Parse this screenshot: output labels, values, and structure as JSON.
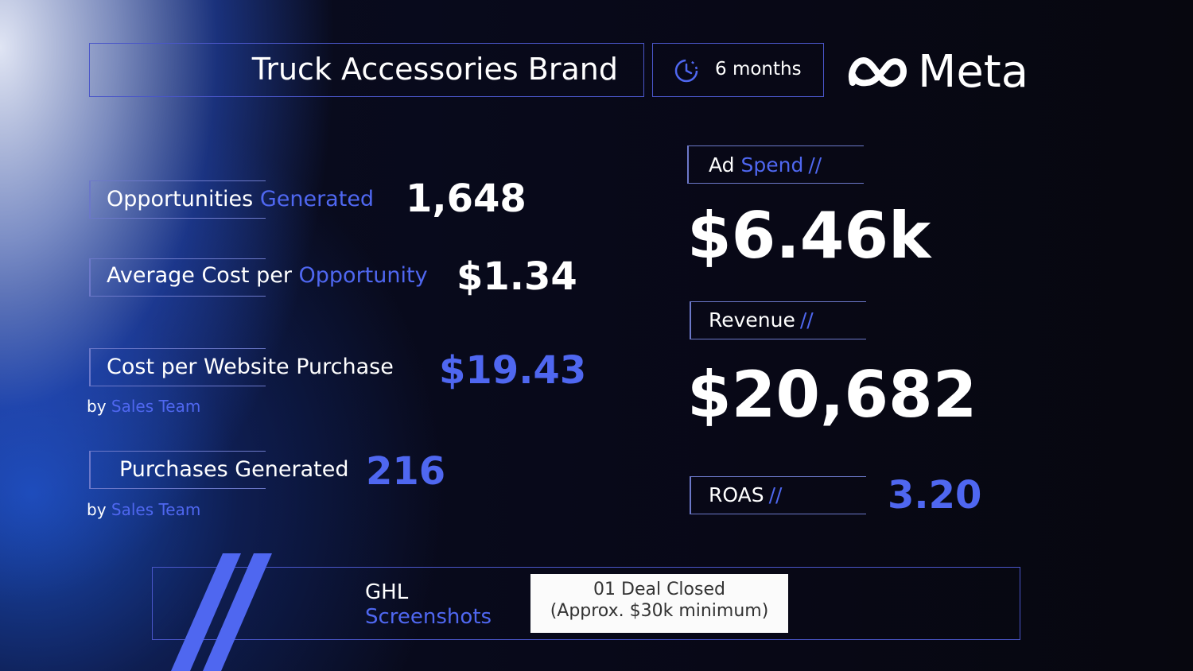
{
  "header": {
    "title": "Truck Accessories Brand",
    "duration": "6 months",
    "brand": "Meta"
  },
  "left_metrics": {
    "opportunities": {
      "label_white": "Opportunities",
      "label_blue": "Generated",
      "value": "1,648"
    },
    "avg_cost": {
      "label_white": "Average Cost per",
      "label_blue": "Opportunity",
      "value": "$1.34"
    },
    "cost_purchase": {
      "label": "Cost per Website Purchase",
      "value": "$19.43",
      "by_prefix": "by",
      "by_team": "Sales Team"
    },
    "purchases": {
      "label": "Purchases Generated",
      "value": "216",
      "by_prefix": "by",
      "by_team": "Sales Team"
    }
  },
  "right_metrics": {
    "ad_spend": {
      "label_white": "Ad",
      "label_blue": "Spend",
      "slashes": "//",
      "value": "$6.46k"
    },
    "revenue": {
      "label": "Revenue",
      "slashes": "//",
      "value": "$20,682"
    },
    "roas": {
      "label": "ROAS",
      "slashes": "//",
      "value": "3.20"
    }
  },
  "footer": {
    "ghl": "GHL",
    "screenshots": "Screenshots",
    "deal_line1": "01 Deal Closed",
    "deal_line2": "(Approx. $30k minimum)"
  },
  "colors": {
    "accent": "#4f67f0",
    "border": "#4a56c9",
    "background": "#07070f"
  },
  "icons": [
    "clock-icon",
    "meta-logo-icon",
    "slash-decoration"
  ]
}
